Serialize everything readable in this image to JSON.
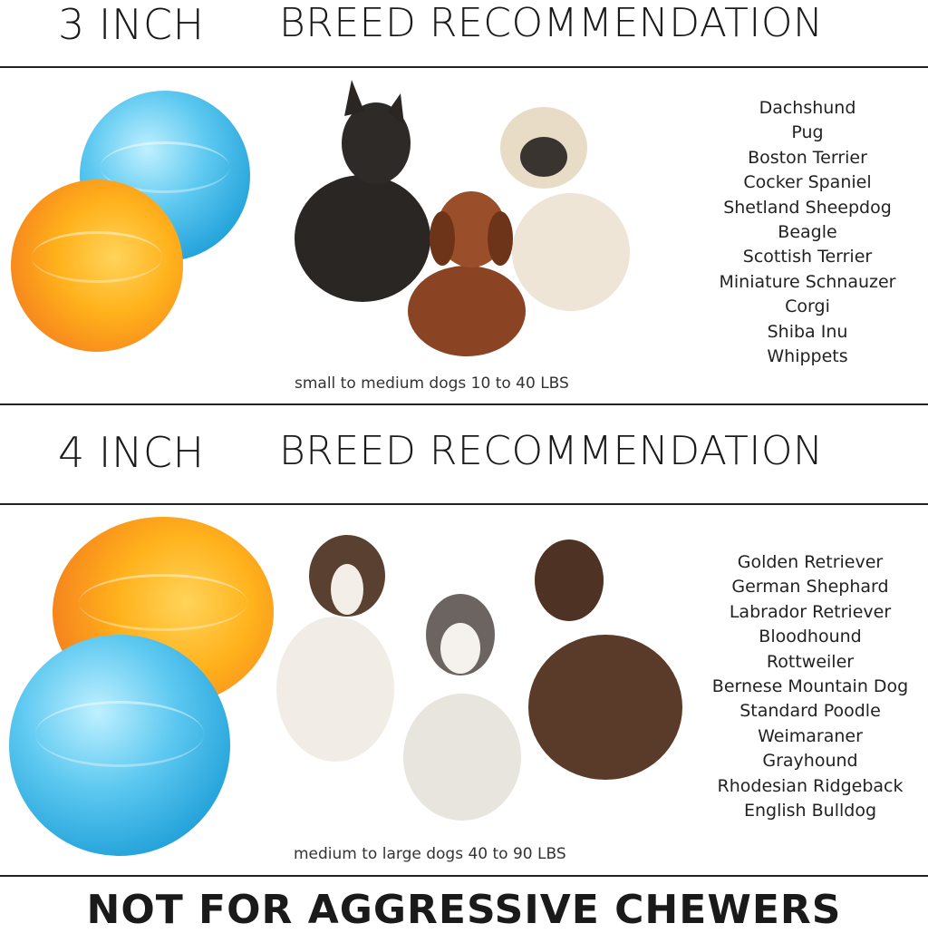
{
  "section_small": {
    "size_label": "3 INCH",
    "heading": "BREED RECOMMENDATION",
    "caption": "small to medium dogs 10 to 40 LBS",
    "breeds": [
      "Dachshund",
      "Pug",
      "Boston Terrier",
      "Cocker Spaniel",
      "Shetland Sheepdog",
      "Beagle",
      "Scottish Terrier",
      "Miniature Schnauzer",
      "Corgi",
      "Shiba Inu",
      "Whippets"
    ]
  },
  "section_large": {
    "size_label": "4 INCH",
    "heading": "BREED RECOMMENDATION",
    "caption": "medium to large dogs 40 to 90 LBS",
    "breeds": [
      "Golden Retriever",
      "German Shephard",
      "Labrador Retriever",
      "Bloodhound",
      "Rottweiler",
      "Bernese Mountain Dog",
      "Standard Poodle",
      "Weimaraner",
      "Grayhound",
      "Rhodesian Ridgeback",
      "English Bulldog"
    ]
  },
  "footer": {
    "warning": "NOT FOR AGGRESSIVE CHEWERS"
  },
  "colors": {
    "ball_blue": "#3db4e8",
    "ball_orange": "#f79a1e"
  }
}
